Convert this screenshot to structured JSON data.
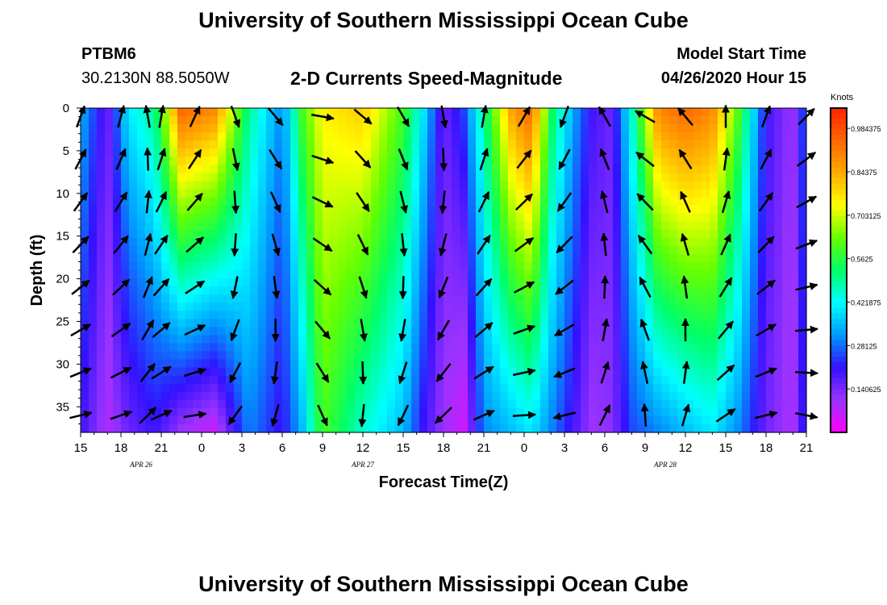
{
  "header": {
    "title": "University of Southern Mississippi Ocean Cube",
    "station_id": "PTBM6",
    "station_location": "30.2130N 88.5050W",
    "subtitle": "2-D Currents Speed-Magnitude",
    "model_start_label": "Model Start Time",
    "model_start_value": "04/26/2020 Hour 15"
  },
  "footer": {
    "title": "University of Southern Mississippi Ocean Cube"
  },
  "colors": {
    "scale": [
      "#ff00ff",
      "#9933ff",
      "#3311ff",
      "#0099ff",
      "#00ffff",
      "#00ff66",
      "#66ff00",
      "#ffff00",
      "#ffaa00",
      "#ff6600",
      "#ff2200"
    ]
  },
  "chart_data": {
    "type": "heatmap",
    "title": "2-D Currents Speed-Magnitude",
    "xlabel": "Forecast Time(Z)",
    "ylabel": "Depth (ft)",
    "x_range": [
      0,
      54
    ],
    "y_range": [
      0,
      38
    ],
    "x_tick_labels": [
      "15",
      "18",
      "21",
      "0",
      "3",
      "6",
      "9",
      "12",
      "15",
      "18",
      "21",
      "0",
      "3",
      "6",
      "9",
      "12",
      "15",
      "18",
      "21"
    ],
    "x_tick_hours": [
      0,
      3,
      6,
      9,
      12,
      15,
      18,
      21,
      24,
      27,
      30,
      33,
      36,
      39,
      42,
      45,
      48,
      51,
      54
    ],
    "date_labels": [
      {
        "text": "APR 26",
        "hour": 4.5
      },
      {
        "text": "APR 27",
        "hour": 21
      },
      {
        "text": "APR 28",
        "hour": 43.5
      }
    ],
    "y_ticks": [
      0,
      5,
      10,
      15,
      20,
      25,
      30,
      35
    ],
    "colorbar": {
      "unit": "Knots",
      "labels": [
        "0.984375",
        "0.84375",
        "0.703125",
        "0.5625",
        "0.421875",
        "0.28125",
        "0.140625"
      ],
      "min": 0,
      "max": 1.05
    },
    "speed_profiles": [
      {
        "hour": 0,
        "top": 0.35,
        "bottom": 0.2
      },
      {
        "hour": 2,
        "top": 0.15,
        "bottom": 0.08
      },
      {
        "hour": 3.5,
        "top": 0.4,
        "bottom": 0.15
      },
      {
        "hour": 5.5,
        "top": 0.5,
        "bottom": 0.2
      },
      {
        "hour": 7.5,
        "top": 0.95,
        "bottom": 0.1
      },
      {
        "hour": 10,
        "top": 0.9,
        "bottom": 0.05
      },
      {
        "hour": 12.5,
        "top": 0.5,
        "bottom": 0.3
      },
      {
        "hour": 15,
        "top": 0.3,
        "bottom": 0.2
      },
      {
        "hour": 16.5,
        "top": 0.6,
        "bottom": 0.35
      },
      {
        "hour": 18,
        "top": 0.75,
        "bottom": 0.6
      },
      {
        "hour": 21,
        "top": 0.8,
        "bottom": 0.45
      },
      {
        "hour": 24,
        "top": 0.6,
        "bottom": 0.35
      },
      {
        "hour": 25.5,
        "top": 0.4,
        "bottom": 0.2
      },
      {
        "hour": 27,
        "top": 0.15,
        "bottom": 0.1
      },
      {
        "hour": 28.5,
        "top": 0.25,
        "bottom": 0.05
      },
      {
        "hour": 30,
        "top": 0.5,
        "bottom": 0.3
      },
      {
        "hour": 32,
        "top": 0.85,
        "bottom": 0.35
      },
      {
        "hour": 33.5,
        "top": 0.95,
        "bottom": 0.4
      },
      {
        "hour": 35,
        "top": 0.55,
        "bottom": 0.3
      },
      {
        "hour": 36.5,
        "top": 0.35,
        "bottom": 0.2
      },
      {
        "hour": 38,
        "top": 0.2,
        "bottom": 0.1
      },
      {
        "hour": 39.5,
        "top": 0.15,
        "bottom": 0.12
      },
      {
        "hour": 41,
        "top": 0.45,
        "bottom": 0.25
      },
      {
        "hour": 43,
        "top": 0.9,
        "bottom": 0.3
      },
      {
        "hour": 45,
        "top": 0.95,
        "bottom": 0.35
      },
      {
        "hour": 47,
        "top": 0.9,
        "bottom": 0.4
      },
      {
        "hour": 49,
        "top": 0.6,
        "bottom": 0.3
      },
      {
        "hour": 51,
        "top": 0.2,
        "bottom": 0.15
      },
      {
        "hour": 53,
        "top": 0.1,
        "bottom": 0.08
      },
      {
        "hour": 54,
        "top": 0.3,
        "bottom": 0.25
      }
    ],
    "vector_hours": [
      0,
      3,
      5,
      6,
      8.5,
      11.5,
      14.5,
      18,
      21,
      24,
      27,
      30,
      33,
      36,
      39,
      42,
      45,
      48,
      51,
      54
    ],
    "vector_depths": [
      1,
      6,
      11,
      16,
      21,
      26,
      31,
      36
    ],
    "vector_directions_deg": [
      20,
      15,
      350,
      10,
      25,
      160,
      140,
      100,
      130,
      150,
      170,
      10,
      30,
      200,
      330,
      300,
      320,
      0,
      20,
      45
    ]
  }
}
